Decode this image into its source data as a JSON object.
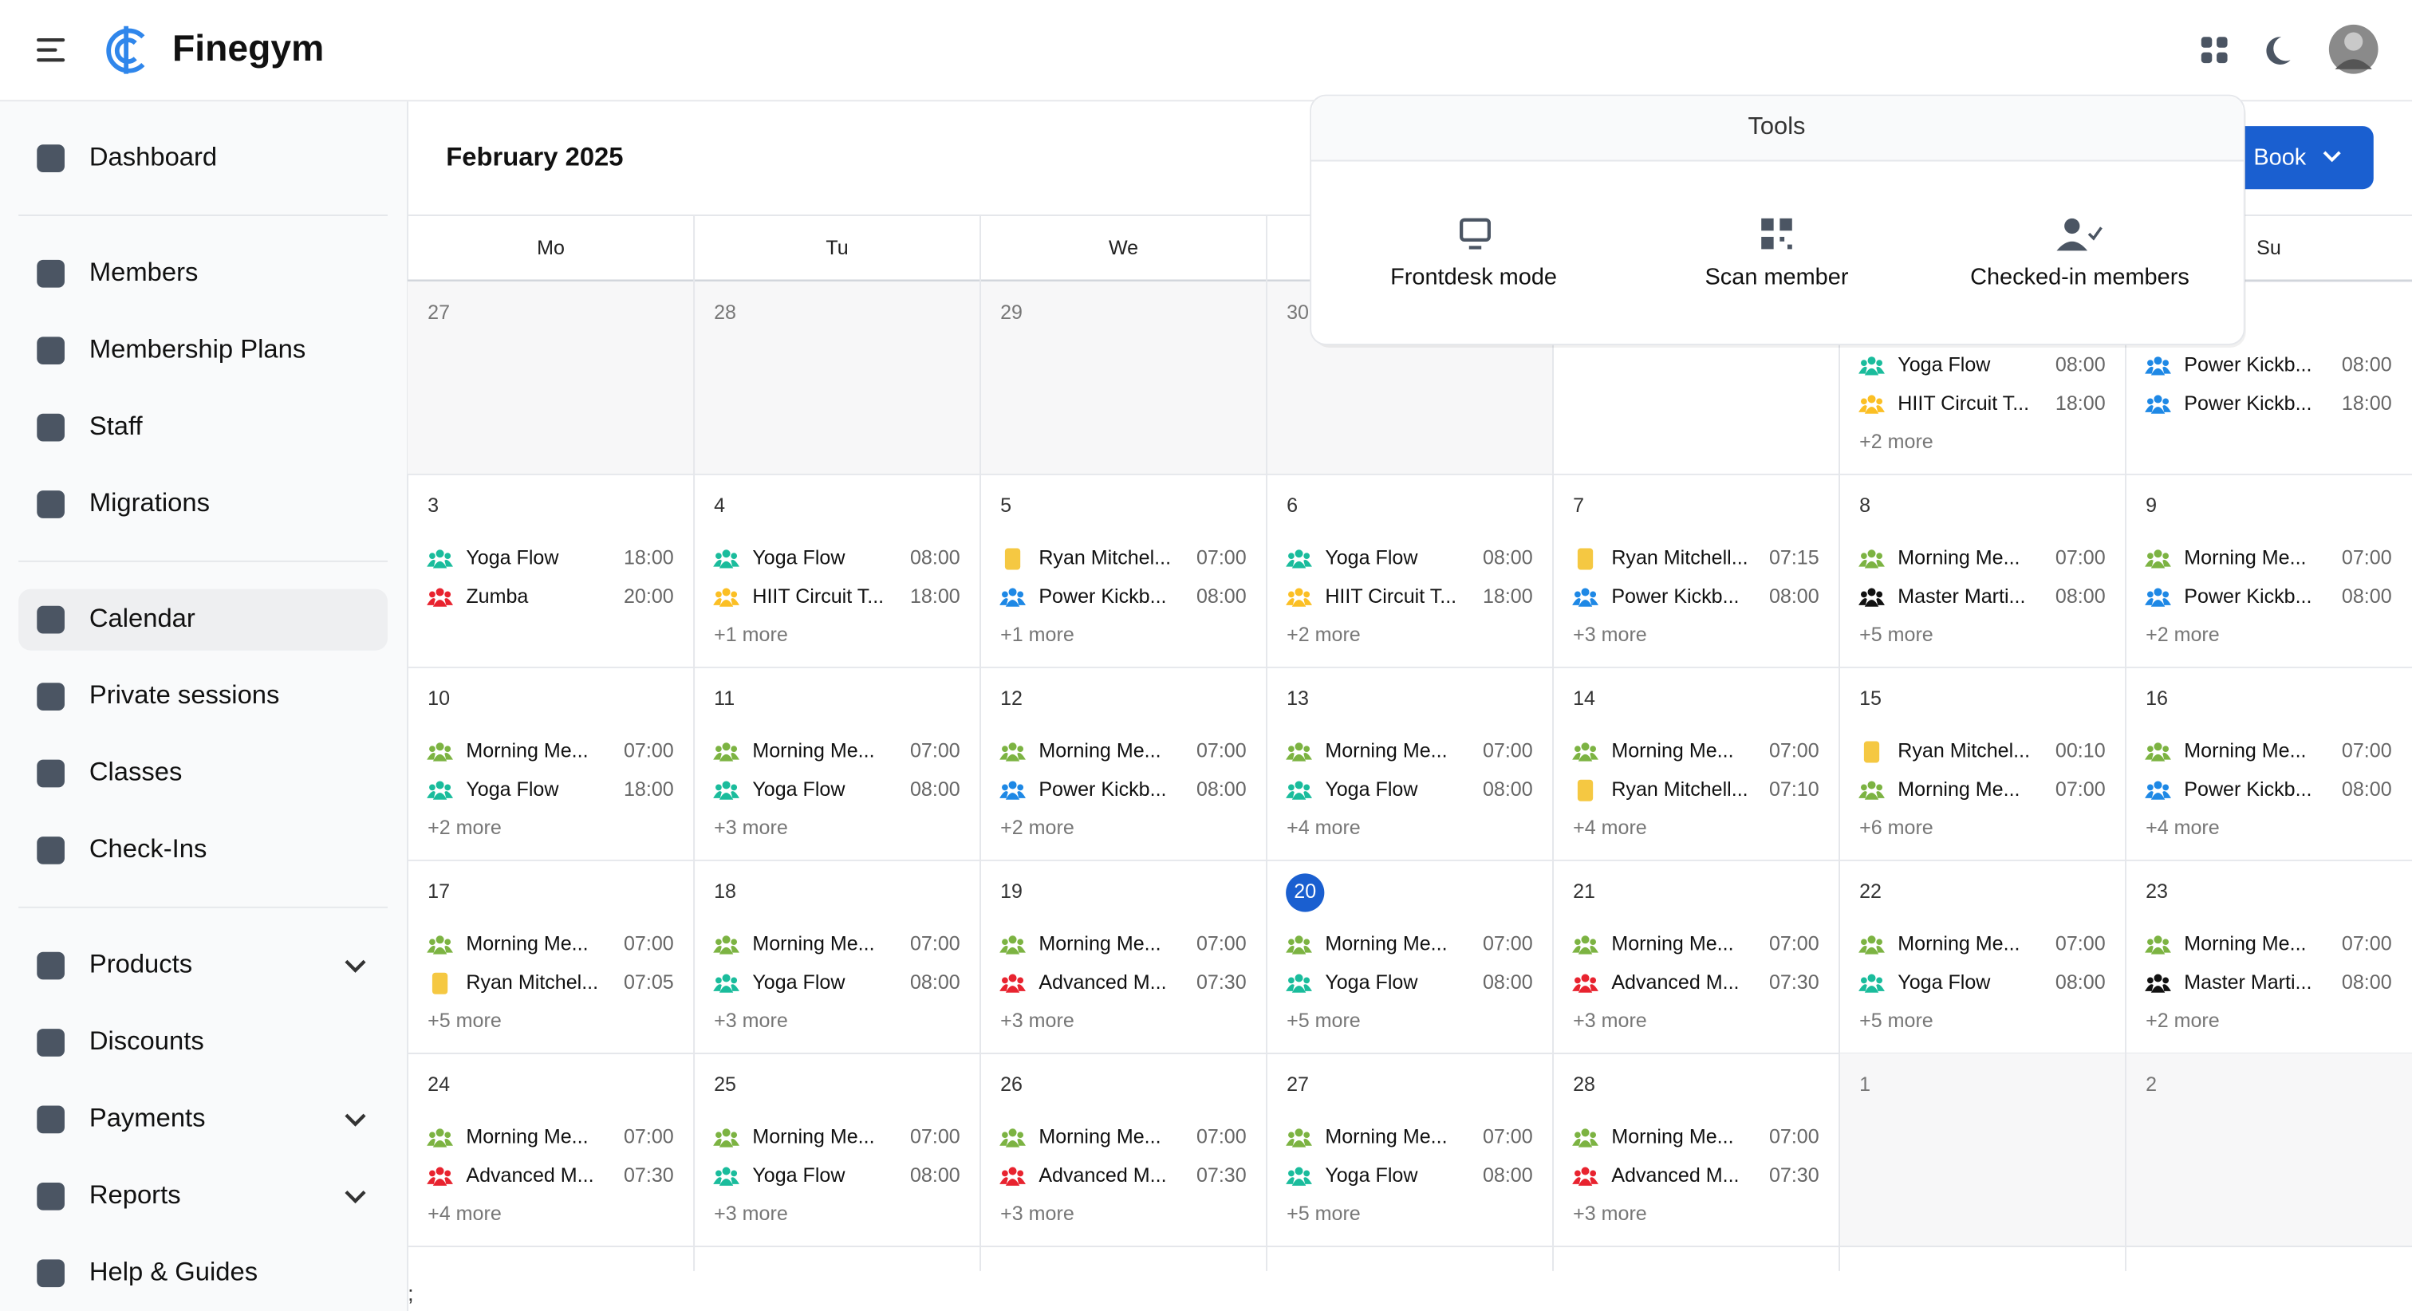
{
  "header": {
    "title": "Finegym"
  },
  "sidebar": {
    "groups": [
      [
        {
          "label": "Dashboard"
        }
      ],
      [
        {
          "label": "Members"
        },
        {
          "label": "Membership Plans"
        },
        {
          "label": "Staff"
        },
        {
          "label": "Migrations"
        }
      ],
      [
        {
          "label": "Calendar",
          "active": true
        },
        {
          "label": "Private sessions"
        },
        {
          "label": "Classes"
        },
        {
          "label": "Check-Ins"
        }
      ],
      [
        {
          "label": "Products",
          "expandable": true
        },
        {
          "label": "Discounts"
        },
        {
          "label": "Payments",
          "expandable": true
        },
        {
          "label": "Reports",
          "expandable": true
        },
        {
          "label": "Help & Guides"
        }
      ]
    ]
  },
  "calendar": {
    "title": "February 2025",
    "book_button": "Book",
    "weekdays": [
      "Mo",
      "Tu",
      "We",
      null,
      null,
      null,
      "Su"
    ],
    "weeks": [
      [
        {
          "day": "27",
          "muted": true,
          "events": []
        },
        {
          "day": "28",
          "muted": true,
          "events": []
        },
        {
          "day": "29",
          "muted": true,
          "events": []
        },
        {
          "day": "30",
          "muted": true,
          "events": []
        },
        {
          "day": null,
          "events": []
        },
        {
          "day": null,
          "events": [
            {
              "name": "Yoga Flow",
              "time": "08:00",
              "color": "#1abc9c"
            },
            {
              "name": "HIIT Circuit T...",
              "time": "18:00",
              "color": "#fbbf24"
            }
          ],
          "more": "+2 more"
        },
        {
          "day": null,
          "events": [
            {
              "name": "Power Kickb...",
              "time": "08:00",
              "color": "#1e88e5"
            },
            {
              "name": "Power Kickb...",
              "time": "18:00",
              "color": "#1e88e5"
            }
          ]
        }
      ],
      [
        {
          "day": "3",
          "events": [
            {
              "name": "Yoga Flow",
              "time": "18:00",
              "color": "#1abc9c"
            },
            {
              "name": "Zumba",
              "time": "20:00",
              "color": "#e8232f"
            }
          ]
        },
        {
          "day": "4",
          "events": [
            {
              "name": "Yoga Flow",
              "time": "08:00",
              "color": "#1abc9c"
            },
            {
              "name": "HIIT Circuit T...",
              "time": "18:00",
              "color": "#fbbf24"
            }
          ],
          "more": "+1 more"
        },
        {
          "day": "5",
          "events": [
            {
              "name": "Ryan Mitchel...",
              "time": "07:00",
              "color": "#f5c842",
              "icon": "clipboard"
            },
            {
              "name": "Power Kickb...",
              "time": "08:00",
              "color": "#1e88e5"
            }
          ],
          "more": "+1 more"
        },
        {
          "day": "6",
          "events": [
            {
              "name": "Yoga Flow",
              "time": "08:00",
              "color": "#1abc9c"
            },
            {
              "name": "HIIT Circuit T...",
              "time": "18:00",
              "color": "#fbbf24"
            }
          ],
          "more": "+2 more"
        },
        {
          "day": "7",
          "events": [
            {
              "name": "Ryan Mitchell...",
              "time": "07:15",
              "color": "#f5c842",
              "icon": "clipboard"
            },
            {
              "name": "Power Kickb...",
              "time": "08:00",
              "color": "#1e88e5"
            }
          ],
          "more": "+3 more"
        },
        {
          "day": "8",
          "events": [
            {
              "name": "Morning Me...",
              "time": "07:00",
              "color": "#7cb342"
            },
            {
              "name": "Master Marti...",
              "time": "08:00",
              "color": "#111111"
            }
          ],
          "more": "+5 more"
        },
        {
          "day": "9",
          "events": [
            {
              "name": "Morning Me...",
              "time": "07:00",
              "color": "#7cb342"
            },
            {
              "name": "Power Kickb...",
              "time": "08:00",
              "color": "#1e88e5"
            }
          ],
          "more": "+2 more"
        }
      ],
      [
        {
          "day": "10",
          "events": [
            {
              "name": "Morning Me...",
              "time": "07:00",
              "color": "#7cb342"
            },
            {
              "name": "Yoga Flow",
              "time": "18:00",
              "color": "#1abc9c"
            }
          ],
          "more": "+2 more"
        },
        {
          "day": "11",
          "events": [
            {
              "name": "Morning Me...",
              "time": "07:00",
              "color": "#7cb342"
            },
            {
              "name": "Yoga Flow",
              "time": "08:00",
              "color": "#1abc9c"
            }
          ],
          "more": "+3 more"
        },
        {
          "day": "12",
          "events": [
            {
              "name": "Morning Me...",
              "time": "07:00",
              "color": "#7cb342"
            },
            {
              "name": "Power Kickb...",
              "time": "08:00",
              "color": "#1e88e5"
            }
          ],
          "more": "+2 more"
        },
        {
          "day": "13",
          "events": [
            {
              "name": "Morning Me...",
              "time": "07:00",
              "color": "#7cb342"
            },
            {
              "name": "Yoga Flow",
              "time": "08:00",
              "color": "#1abc9c"
            }
          ],
          "more": "+4 more"
        },
        {
          "day": "14",
          "events": [
            {
              "name": "Morning Me...",
              "time": "07:00",
              "color": "#7cb342"
            },
            {
              "name": "Ryan Mitchell...",
              "time": "07:10",
              "color": "#f5c842",
              "icon": "clipboard"
            }
          ],
          "more": "+4 more"
        },
        {
          "day": "15",
          "events": [
            {
              "name": "Ryan Mitchel...",
              "time": "00:10",
              "color": "#f5c842",
              "icon": "clipboard"
            },
            {
              "name": "Morning Me...",
              "time": "07:00",
              "color": "#7cb342"
            }
          ],
          "more": "+6 more"
        },
        {
          "day": "16",
          "events": [
            {
              "name": "Morning Me...",
              "time": "07:00",
              "color": "#7cb342"
            },
            {
              "name": "Power Kickb...",
              "time": "08:00",
              "color": "#1e88e5"
            }
          ],
          "more": "+4 more"
        }
      ],
      [
        {
          "day": "17",
          "events": [
            {
              "name": "Morning Me...",
              "time": "07:00",
              "color": "#7cb342"
            },
            {
              "name": "Ryan Mitchel...",
              "time": "07:05",
              "color": "#f5c842",
              "icon": "clipboard"
            }
          ],
          "more": "+5 more"
        },
        {
          "day": "18",
          "events": [
            {
              "name": "Morning Me...",
              "time": "07:00",
              "color": "#7cb342"
            },
            {
              "name": "Yoga Flow",
              "time": "08:00",
              "color": "#1abc9c"
            }
          ],
          "more": "+3 more"
        },
        {
          "day": "19",
          "events": [
            {
              "name": "Morning Me...",
              "time": "07:00",
              "color": "#7cb342"
            },
            {
              "name": "Advanced M...",
              "time": "07:30",
              "color": "#e8232f"
            }
          ],
          "more": "+3 more"
        },
        {
          "day": "20",
          "today": true,
          "events": [
            {
              "name": "Morning Me...",
              "time": "07:00",
              "color": "#7cb342"
            },
            {
              "name": "Yoga Flow",
              "time": "08:00",
              "color": "#1abc9c"
            }
          ],
          "more": "+5 more"
        },
        {
          "day": "21",
          "events": [
            {
              "name": "Morning Me...",
              "time": "07:00",
              "color": "#7cb342"
            },
            {
              "name": "Advanced M...",
              "time": "07:30",
              "color": "#e8232f"
            }
          ],
          "more": "+3 more"
        },
        {
          "day": "22",
          "events": [
            {
              "name": "Morning Me...",
              "time": "07:00",
              "color": "#7cb342"
            },
            {
              "name": "Yoga Flow",
              "time": "08:00",
              "color": "#1abc9c"
            }
          ],
          "more": "+5 more"
        },
        {
          "day": "23",
          "events": [
            {
              "name": "Morning Me...",
              "time": "07:00",
              "color": "#7cb342"
            },
            {
              "name": "Master Marti...",
              "time": "08:00",
              "color": "#111111"
            }
          ],
          "more": "+2 more"
        }
      ],
      [
        {
          "day": "24",
          "events": [
            {
              "name": "Morning Me...",
              "time": "07:00",
              "color": "#7cb342"
            },
            {
              "name": "Advanced M...",
              "time": "07:30",
              "color": "#e8232f"
            }
          ],
          "more": "+4 more"
        },
        {
          "day": "25",
          "events": [
            {
              "name": "Morning Me...",
              "time": "07:00",
              "color": "#7cb342"
            },
            {
              "name": "Yoga Flow",
              "time": "08:00",
              "color": "#1abc9c"
            }
          ],
          "more": "+3 more"
        },
        {
          "day": "26",
          "events": [
            {
              "name": "Morning Me...",
              "time": "07:00",
              "color": "#7cb342"
            },
            {
              "name": "Advanced M...",
              "time": "07:30",
              "color": "#e8232f"
            }
          ],
          "more": "+3 more"
        },
        {
          "day": "27",
          "events": [
            {
              "name": "Morning Me...",
              "time": "07:00",
              "color": "#7cb342"
            },
            {
              "name": "Yoga Flow",
              "time": "08:00",
              "color": "#1abc9c"
            }
          ],
          "more": "+5 more"
        },
        {
          "day": "28",
          "events": [
            {
              "name": "Morning Me...",
              "time": "07:00",
              "color": "#7cb342"
            },
            {
              "name": "Advanced M...",
              "time": "07:30",
              "color": "#e8232f"
            }
          ],
          "more": "+3 more"
        },
        {
          "day": "1",
          "muted": true,
          "events": []
        },
        {
          "day": "2",
          "muted": true,
          "events": []
        }
      ]
    ]
  },
  "tools": {
    "title": "Tools",
    "items": [
      "Frontdesk mode",
      "Scan member",
      "Checked-in members"
    ]
  },
  "footer_text": ";"
}
